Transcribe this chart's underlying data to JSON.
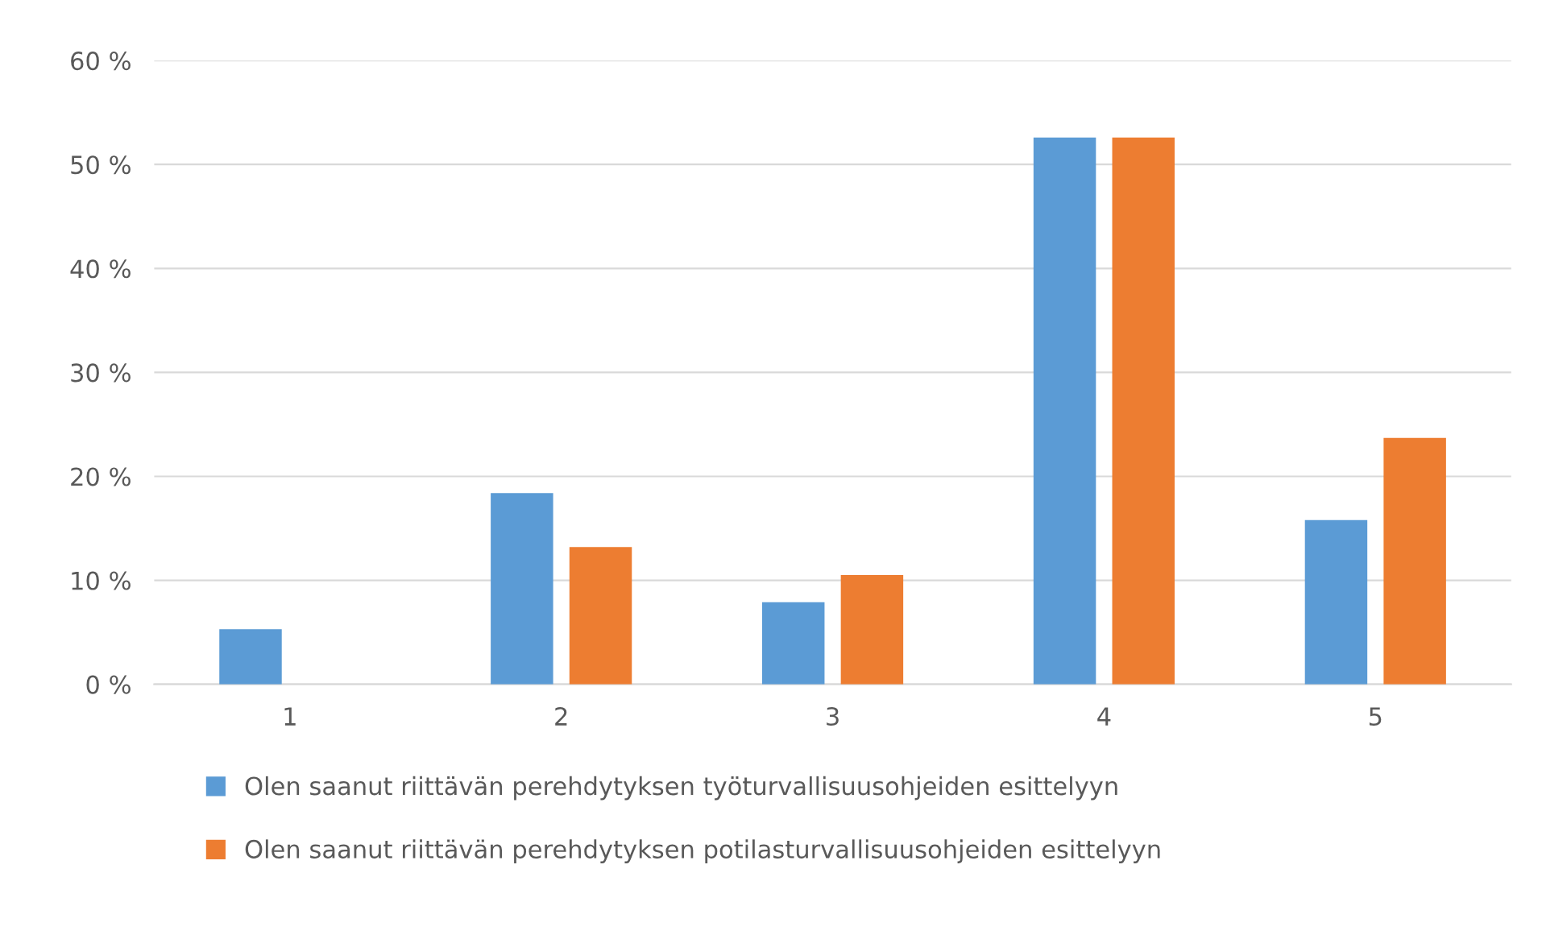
{
  "chart_data": {
    "type": "bar",
    "categories": [
      "1",
      "2",
      "3",
      "4",
      "5"
    ],
    "series": [
      {
        "name": "Olen saanut riittävän perehdytyksen työturvallisuusohjeiden esittelyyn",
        "color": "#5b9bd5",
        "values": [
          5.3,
          18.4,
          7.9,
          52.6,
          15.8
        ]
      },
      {
        "name": "Olen saanut riittävän perehdytyksen potilasturvallisuusohjeiden esittelyyn",
        "color": "#ed7d31",
        "values": [
          0,
          13.2,
          10.5,
          52.6,
          23.7
        ]
      }
    ],
    "ylim": [
      0,
      60
    ],
    "yticks": [
      {
        "value": 0,
        "label": "0 %"
      },
      {
        "value": 10,
        "label": "10 %"
      },
      {
        "value": 20,
        "label": "20 %"
      },
      {
        "value": 30,
        "label": "30 %"
      },
      {
        "value": 40,
        "label": "40 %"
      },
      {
        "value": 50,
        "label": "50 %"
      },
      {
        "value": 60,
        "label": "60 %"
      }
    ],
    "grid": "y",
    "legend": "bottom"
  }
}
